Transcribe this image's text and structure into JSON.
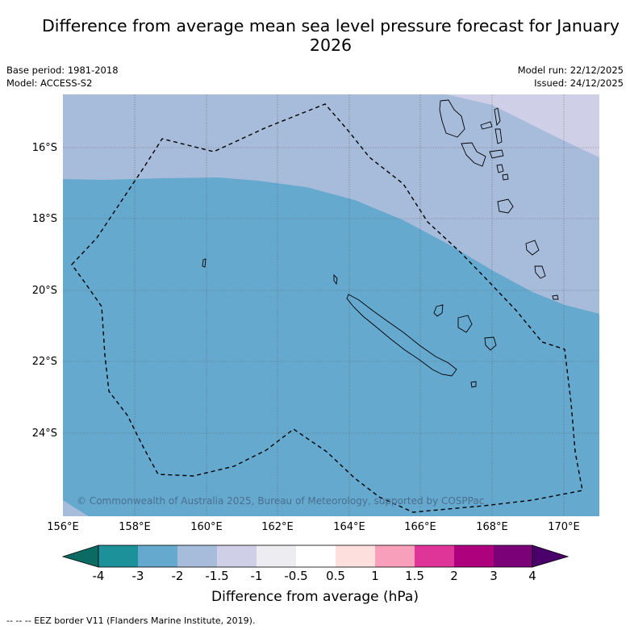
{
  "title": "Difference from average mean sea level pressure forecast for January 2026",
  "base_period": "Base period: 1981-2018",
  "model": "Model: ACCESS-S2",
  "model_run": "Model run: 22/12/2025",
  "issued": "Issued: 24/12/2025",
  "copyright": "© Commonwealth of Australia 2025, Bureau of Meteorology, supported by COSPPac",
  "footnote": "--  --  -- EEZ border V11 (Flanders Marine Institute, 2019).",
  "lat_labels": [
    "16°S",
    "18°S",
    "20°S",
    "22°S",
    "24°S"
  ],
  "lon_labels": [
    "156°E",
    "158°E",
    "160°E",
    "162°E",
    "164°E",
    "166°E",
    "168°E",
    "170°E"
  ],
  "colorbar": {
    "title": "Difference from average (hPa)",
    "tick_labels": [
      "-4",
      "-3",
      "-2",
      "-1.5",
      "-1",
      "-0.5",
      "0.5",
      "1",
      "1.5",
      "2",
      "3",
      "4"
    ],
    "colors": {
      "below_-4": "#0b6b63",
      "-4_-3": "#1d9199",
      "-3_-2": "#66a9cf",
      "-2_-1.5": "#a7bbda",
      "-1.5_-1": "#cfd0e7",
      "-1_-0.5": "#ececf1",
      "-0.5_0.5": "#ffffff",
      "0.5_1": "#fde0dd",
      "1_1.5": "#f79fbb",
      "1.5_2": "#df3599",
      "2_3": "#ae017e",
      "3_4": "#7a0177",
      "above_4": "#49006a"
    }
  },
  "map_data": {
    "regions": [
      {
        "range": "-3 to -2 hPa",
        "color": "#66a9cf"
      },
      {
        "range": "-2 to -1.5 hPa",
        "color": "#a7bbda"
      },
      {
        "range": "-1.5 to -1 hPa",
        "color": "#cfd0e7"
      }
    ],
    "lon_range": [
      156,
      171
    ],
    "lat_range": [
      -14.5,
      -26.3
    ]
  }
}
